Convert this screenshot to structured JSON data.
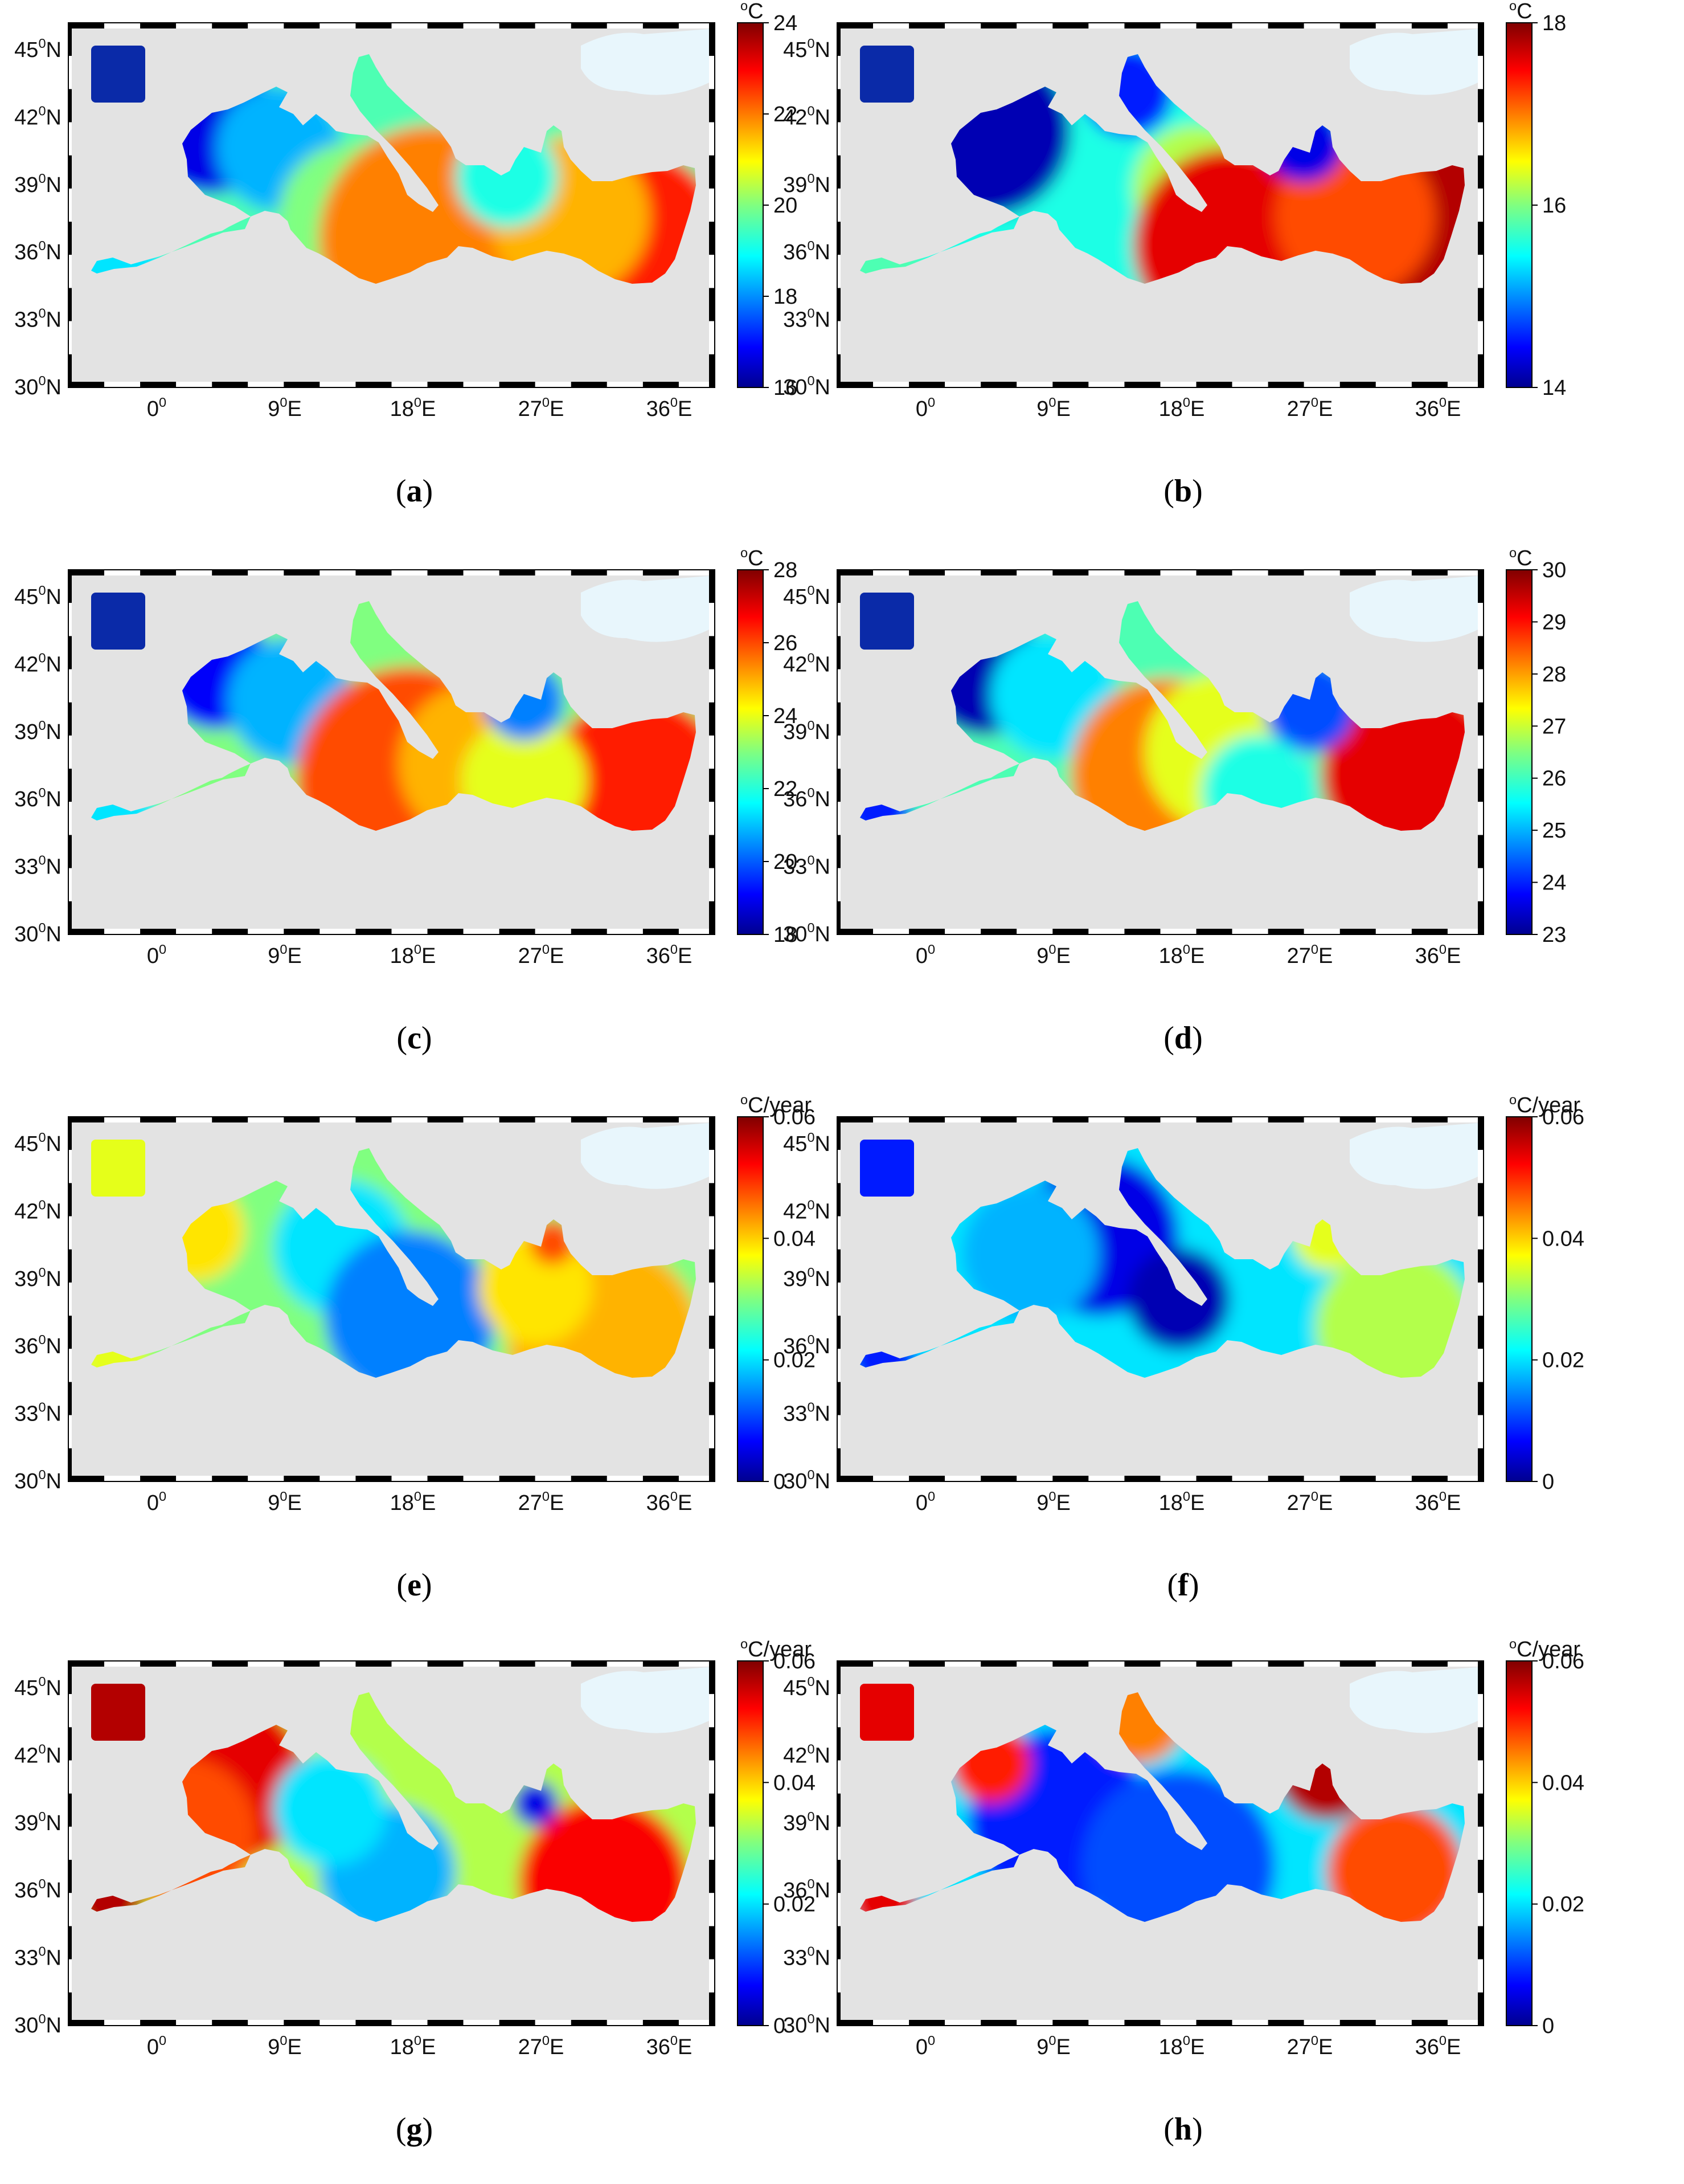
{
  "figure": {
    "longitude_ticks": [
      {
        "text": "0",
        "deg": "0",
        "hem": ""
      },
      {
        "text": "9",
        "deg": "0",
        "hem": "E"
      },
      {
        "text": "18",
        "deg": "0",
        "hem": "E"
      },
      {
        "text": "27",
        "deg": "0",
        "hem": "E"
      },
      {
        "text": "36",
        "deg": "0",
        "hem": "E"
      }
    ],
    "latitude_ticks": [
      {
        "text": "45",
        "deg": "0",
        "hem": "N"
      },
      {
        "text": "42",
        "deg": "0",
        "hem": "N"
      },
      {
        "text": "39",
        "deg": "0",
        "hem": "N"
      },
      {
        "text": "36",
        "deg": "0",
        "hem": "N"
      },
      {
        "text": "33",
        "deg": "0",
        "hem": "N"
      },
      {
        "text": "30",
        "deg": "0",
        "hem": "N"
      }
    ],
    "colors": {
      "land": "#e3e3e3",
      "black_sea": "#e8f6fc",
      "atlantic_patch_temp": "#0a2aa8",
      "frame_dark": "#000000",
      "frame_light": "#ffffff"
    },
    "colormap": "jet",
    "panels": [
      {
        "id": "a",
        "label_open": "(",
        "label": "a",
        "label_close": ")",
        "unit_sup": "o",
        "unit": "C",
        "colorbar": {
          "min": 16,
          "max": 24,
          "ticks": [
            "24",
            "22",
            "20",
            "18",
            "16"
          ]
        }
      },
      {
        "id": "b",
        "label_open": "(",
        "label": "b",
        "label_close": ")",
        "unit_sup": "o",
        "unit": "C",
        "colorbar": {
          "min": 14,
          "max": 18,
          "ticks": [
            "18",
            "16",
            "14"
          ]
        }
      },
      {
        "id": "c",
        "label_open": "(",
        "label": "c",
        "label_close": ")",
        "unit_sup": "o",
        "unit": "C",
        "colorbar": {
          "min": 18,
          "max": 28,
          "ticks": [
            "28",
            "26",
            "24",
            "22",
            "20",
            "18"
          ]
        }
      },
      {
        "id": "d",
        "label_open": "(",
        "label": "d",
        "label_close": ")",
        "unit_sup": "o",
        "unit": "C",
        "colorbar": {
          "min": 23,
          "max": 30,
          "ticks": [
            "30",
            "29",
            "28",
            "27",
            "26",
            "25",
            "24",
            "23"
          ]
        }
      },
      {
        "id": "e",
        "label_open": "(",
        "label": "e",
        "label_close": ")",
        "unit_sup": "o",
        "unit": "C/year",
        "colorbar": {
          "min": 0,
          "max": 0.06,
          "ticks": [
            "0.06",
            "0.04",
            "0.02",
            "0"
          ]
        }
      },
      {
        "id": "f",
        "label_open": "(",
        "label": "f",
        "label_close": ")",
        "unit_sup": "o",
        "unit": "C/year",
        "colorbar": {
          "min": 0,
          "max": 0.06,
          "ticks": [
            "0.06",
            "0.04",
            "0.02",
            "0"
          ]
        }
      },
      {
        "id": "g",
        "label_open": "(",
        "label": "g",
        "label_close": ")",
        "unit_sup": "o",
        "unit": "C/year",
        "colorbar": {
          "min": 0,
          "max": 0.06,
          "ticks": [
            "0.06",
            "0.04",
            "0.02",
            "0"
          ]
        }
      },
      {
        "id": "h",
        "label_open": "(",
        "label": "h",
        "label_close": ")",
        "unit_sup": "o",
        "unit": "C/year",
        "colorbar": {
          "min": 0,
          "max": 0.06,
          "ticks": [
            "0.06",
            "0.04",
            "0.02",
            "0"
          ]
        }
      }
    ]
  }
}
